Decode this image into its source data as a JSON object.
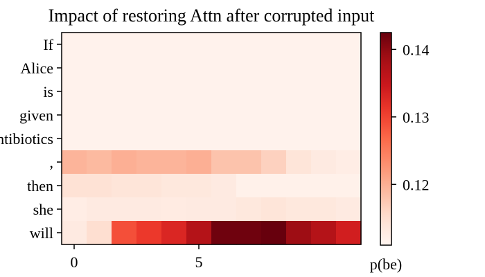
{
  "chart_data": {
    "type": "heatmap",
    "title": "Impact of restoring Attn after corrupted input",
    "y_categories": [
      "If",
      "Alice",
      "is",
      "given",
      "antibiotics",
      ",",
      "then",
      "she",
      "will"
    ],
    "x_ticks": [
      0,
      5
    ],
    "x_count": 12,
    "xlabel": "",
    "colorbar": {
      "label": "p(be)",
      "ticks": [
        0.12,
        0.13,
        0.14
      ],
      "tick_labels": [
        "0.12",
        "0.13",
        "0.14"
      ],
      "vmin": 0.111,
      "vmax": 0.1425,
      "colormap": "Reds"
    },
    "values": [
      [
        0.1115,
        0.1115,
        0.1115,
        0.1115,
        0.1115,
        0.1115,
        0.1115,
        0.1115,
        0.1115,
        0.1115,
        0.1115,
        0.1115
      ],
      [
        0.1115,
        0.1115,
        0.1115,
        0.1115,
        0.1115,
        0.1115,
        0.1115,
        0.1115,
        0.1115,
        0.1115,
        0.1115,
        0.1115
      ],
      [
        0.1115,
        0.1115,
        0.1115,
        0.1115,
        0.1115,
        0.1115,
        0.1115,
        0.1115,
        0.1115,
        0.1115,
        0.1115,
        0.1115
      ],
      [
        0.1115,
        0.1115,
        0.1115,
        0.1115,
        0.1115,
        0.1115,
        0.1115,
        0.1115,
        0.1115,
        0.1115,
        0.1115,
        0.1115
      ],
      [
        0.1115,
        0.1115,
        0.1115,
        0.1115,
        0.1115,
        0.1115,
        0.1115,
        0.1115,
        0.1115,
        0.1115,
        0.1115,
        0.1115
      ],
      [
        0.1195,
        0.119,
        0.12,
        0.1195,
        0.1195,
        0.12,
        0.118,
        0.118,
        0.1165,
        0.114,
        0.113,
        0.1125
      ],
      [
        0.1145,
        0.1145,
        0.114,
        0.114,
        0.1135,
        0.1135,
        0.113,
        0.1118,
        0.1118,
        0.1118,
        0.1118,
        0.1118
      ],
      [
        0.1125,
        0.113,
        0.113,
        0.113,
        0.1128,
        0.113,
        0.113,
        0.1135,
        0.114,
        0.1135,
        0.1135,
        0.113
      ],
      [
        0.113,
        0.115,
        0.129,
        0.131,
        0.133,
        0.137,
        0.142,
        0.142,
        0.1425,
        0.139,
        0.137,
        0.134
      ]
    ]
  }
}
